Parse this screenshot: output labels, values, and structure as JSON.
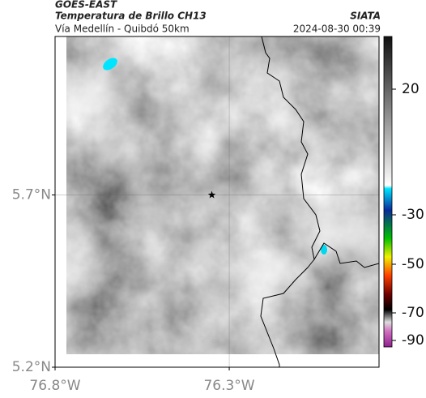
{
  "header": {
    "title": "GOES-EAST",
    "subtitle": "Temperatura de Brillo CH13",
    "source": "SIATA",
    "route": "Vía Medellín - Quibdó 50km",
    "timestamp": "2024-08-30 00:39"
  },
  "map": {
    "lat_lim": [
      5.2,
      6.16
    ],
    "lon_lim": [
      -76.8,
      -75.87
    ],
    "lat_ticks": [
      {
        "value": 5.2,
        "label": "5.2°N"
      },
      {
        "value": 5.7,
        "label": "5.7°N"
      }
    ],
    "lon_ticks": [
      {
        "value": -76.8,
        "label": "76.8°W"
      },
      {
        "value": -76.3,
        "label": "76.3°W"
      }
    ],
    "grid": true,
    "marker": {
      "lat": 5.7,
      "lon": -76.35
    }
  },
  "colorbar": {
    "ticks": [
      20,
      -30,
      -50,
      -70,
      -90
    ]
  }
}
